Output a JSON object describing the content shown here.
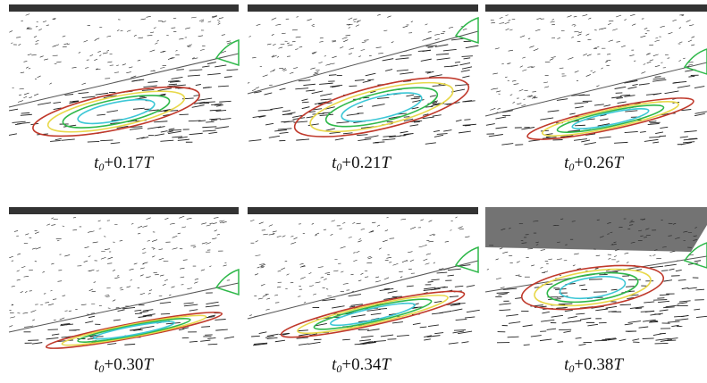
{
  "panels": [
    {
      "caption": {
        "variable": "t",
        "subscript": "0",
        "offset": "+0.17",
        "period": "T"
      }
    },
    {
      "caption": {
        "variable": "t",
        "subscript": "0",
        "offset": "+0.21",
        "period": "T"
      }
    },
    {
      "caption": {
        "variable": "t",
        "subscript": "0",
        "offset": "+0.26",
        "period": "T"
      }
    },
    {
      "caption": {
        "variable": "t",
        "subscript": "0",
        "offset": "+0.30",
        "period": "T"
      }
    },
    {
      "caption": {
        "variable": "t",
        "subscript": "0",
        "offset": "+0.34",
        "period": "T"
      }
    },
    {
      "caption": {
        "variable": "t",
        "subscript": "0",
        "offset": "+0.38",
        "period": "T"
      }
    }
  ]
}
